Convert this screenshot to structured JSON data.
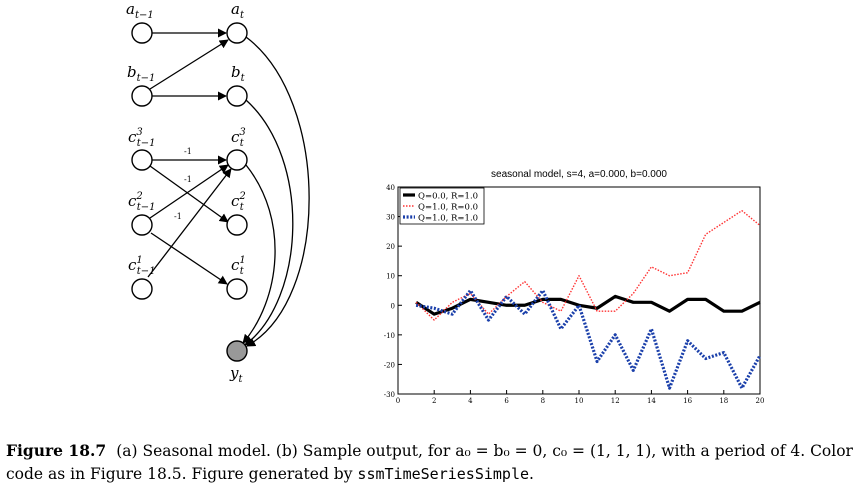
{
  "diagram": {
    "nodes": {
      "a_prev": {
        "base": "a",
        "sub": "t−1",
        "sup": ""
      },
      "a_t": {
        "base": "a",
        "sub": "t",
        "sup": ""
      },
      "b_prev": {
        "base": "b",
        "sub": "t−1",
        "sup": ""
      },
      "b_t": {
        "base": "b",
        "sub": "t",
        "sup": ""
      },
      "c3_prev": {
        "base": "c",
        "sub": "t−1",
        "sup": "3"
      },
      "c3_t": {
        "base": "c",
        "sub": "t",
        "sup": "3"
      },
      "c2_prev": {
        "base": "c",
        "sub": "t−1",
        "sup": "2"
      },
      "c2_t": {
        "base": "c",
        "sub": "t",
        "sup": "2"
      },
      "c1_prev": {
        "base": "c",
        "sub": "t−1",
        "sup": "1"
      },
      "c1_t": {
        "base": "c",
        "sub": "t",
        "sup": "1"
      },
      "y_t": {
        "base": "y",
        "sub": "t",
        "sup": ""
      }
    },
    "edge_weight_label": "-1"
  },
  "chart_data": {
    "type": "line",
    "title": "seasonal model, s=4, a=0.000, b=0.000",
    "xlim": [
      0,
      20
    ],
    "ylim": [
      -30,
      40
    ],
    "xticks": [
      0,
      2,
      4,
      6,
      8,
      10,
      12,
      14,
      16,
      18,
      20
    ],
    "yticks": [
      -30,
      -20,
      -10,
      0,
      10,
      20,
      30,
      40
    ],
    "legend_position": "top-left",
    "series": [
      {
        "name": "Q=0.0, R=1.0",
        "color": "#000000",
        "style": "solid",
        "x": [
          1,
          2,
          3,
          4,
          5,
          6,
          7,
          8,
          9,
          10,
          11,
          12,
          13,
          14,
          15,
          16,
          17,
          18,
          19,
          20
        ],
        "y": [
          1,
          -3,
          -1,
          2,
          1,
          0,
          0,
          2,
          2,
          0,
          -1,
          3,
          1,
          1,
          -2,
          2,
          2,
          -2,
          -2,
          1
        ]
      },
      {
        "name": "Q=1.0, R=0.0",
        "color": "#ff3333",
        "style": "dotted",
        "x": [
          1,
          2,
          3,
          4,
          5,
          6,
          7,
          8,
          9,
          10,
          11,
          12,
          13,
          14,
          15,
          16,
          17,
          18,
          19,
          20
        ],
        "y": [
          1,
          -5,
          1,
          4,
          -3,
          3,
          8,
          1,
          -2,
          10,
          -2,
          -2,
          4,
          13,
          10,
          11,
          24,
          28,
          32,
          27
        ]
      },
      {
        "name": "Q=1.0, R=1.0",
        "color": "#1a3faa",
        "style": "dotted",
        "x": [
          1,
          2,
          3,
          4,
          5,
          6,
          7,
          8,
          9,
          10,
          11,
          12,
          13,
          14,
          15,
          16,
          17,
          18,
          19,
          20
        ],
        "y": [
          0,
          -1,
          -3,
          5,
          -5,
          3,
          -3,
          5,
          -8,
          0,
          -19,
          -10,
          -22,
          -8,
          -28,
          -12,
          -18,
          -16,
          -28,
          -17
        ]
      }
    ]
  },
  "caption": {
    "label": "Figure 18.7",
    "text_before_code": "(a) Seasonal model. (b) Sample output, for a₀ = b₀ = 0, c₀ = (1, 1, 1), with a period of 4. Color code as in Figure 18.5. Figure generated by",
    "code": "ssmTimeSeriesSimple",
    "text_after_code": "."
  }
}
